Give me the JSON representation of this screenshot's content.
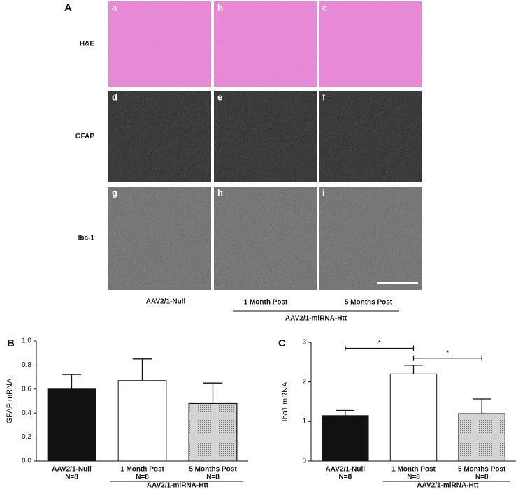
{
  "panel_a": {
    "label": "A",
    "rows": [
      "H&E",
      "GFAP",
      "Iba-1"
    ],
    "tiles": [
      "a",
      "b",
      "c",
      "d",
      "e",
      "f",
      "g",
      "h",
      "i"
    ],
    "columns": [
      "AAV2/1-Null",
      "1 Month Post",
      "5 Months Post"
    ],
    "group": "AAV2/1-miRNA-Htt"
  },
  "chart_data": [
    {
      "type": "bar",
      "panel": "B",
      "ylabel": "GFAP mRNA",
      "categories": [
        "AAV2/1-Null",
        "1 Month Post",
        "5 Months Post"
      ],
      "sublabels": [
        "N=8",
        "N=8",
        "N=8"
      ],
      "group": "AAV2/1-miRNA-Htt",
      "values": [
        0.6,
        0.67,
        0.48
      ],
      "errors": [
        0.12,
        0.18,
        0.17
      ],
      "colors": [
        "#111111",
        "#ffffff",
        "#d4d4d4"
      ],
      "ylim": [
        0,
        1.0
      ],
      "yticks": [
        {
          "value": 0,
          "label": "0.0"
        },
        0.2,
        0.4,
        0.6,
        0.8,
        {
          "value": 1.0,
          "label": "1.0"
        }
      ]
    },
    {
      "type": "bar",
      "panel": "C",
      "ylabel": "Iba1 mRNA",
      "categories": [
        "AAV2/1-Null",
        "1 Month Post",
        "5 Months Post"
      ],
      "sublabels": [
        "N=8",
        "N=8",
        "N=8"
      ],
      "group": "AAV2/1-miRNA-Htt",
      "values": [
        1.15,
        2.2,
        1.2
      ],
      "errors": [
        0.13,
        0.22,
        0.37
      ],
      "colors": [
        "#111111",
        "#ffffff",
        "#d4d4d4"
      ],
      "ylim": [
        0,
        3
      ],
      "yticks": [
        0,
        1,
        2,
        3
      ],
      "significance": [
        {
          "text": "*",
          "between": [
            0,
            1
          ],
          "y": 2.85
        },
        {
          "text": "*",
          "between": [
            1,
            2
          ],
          "y": 2.6
        }
      ]
    }
  ]
}
